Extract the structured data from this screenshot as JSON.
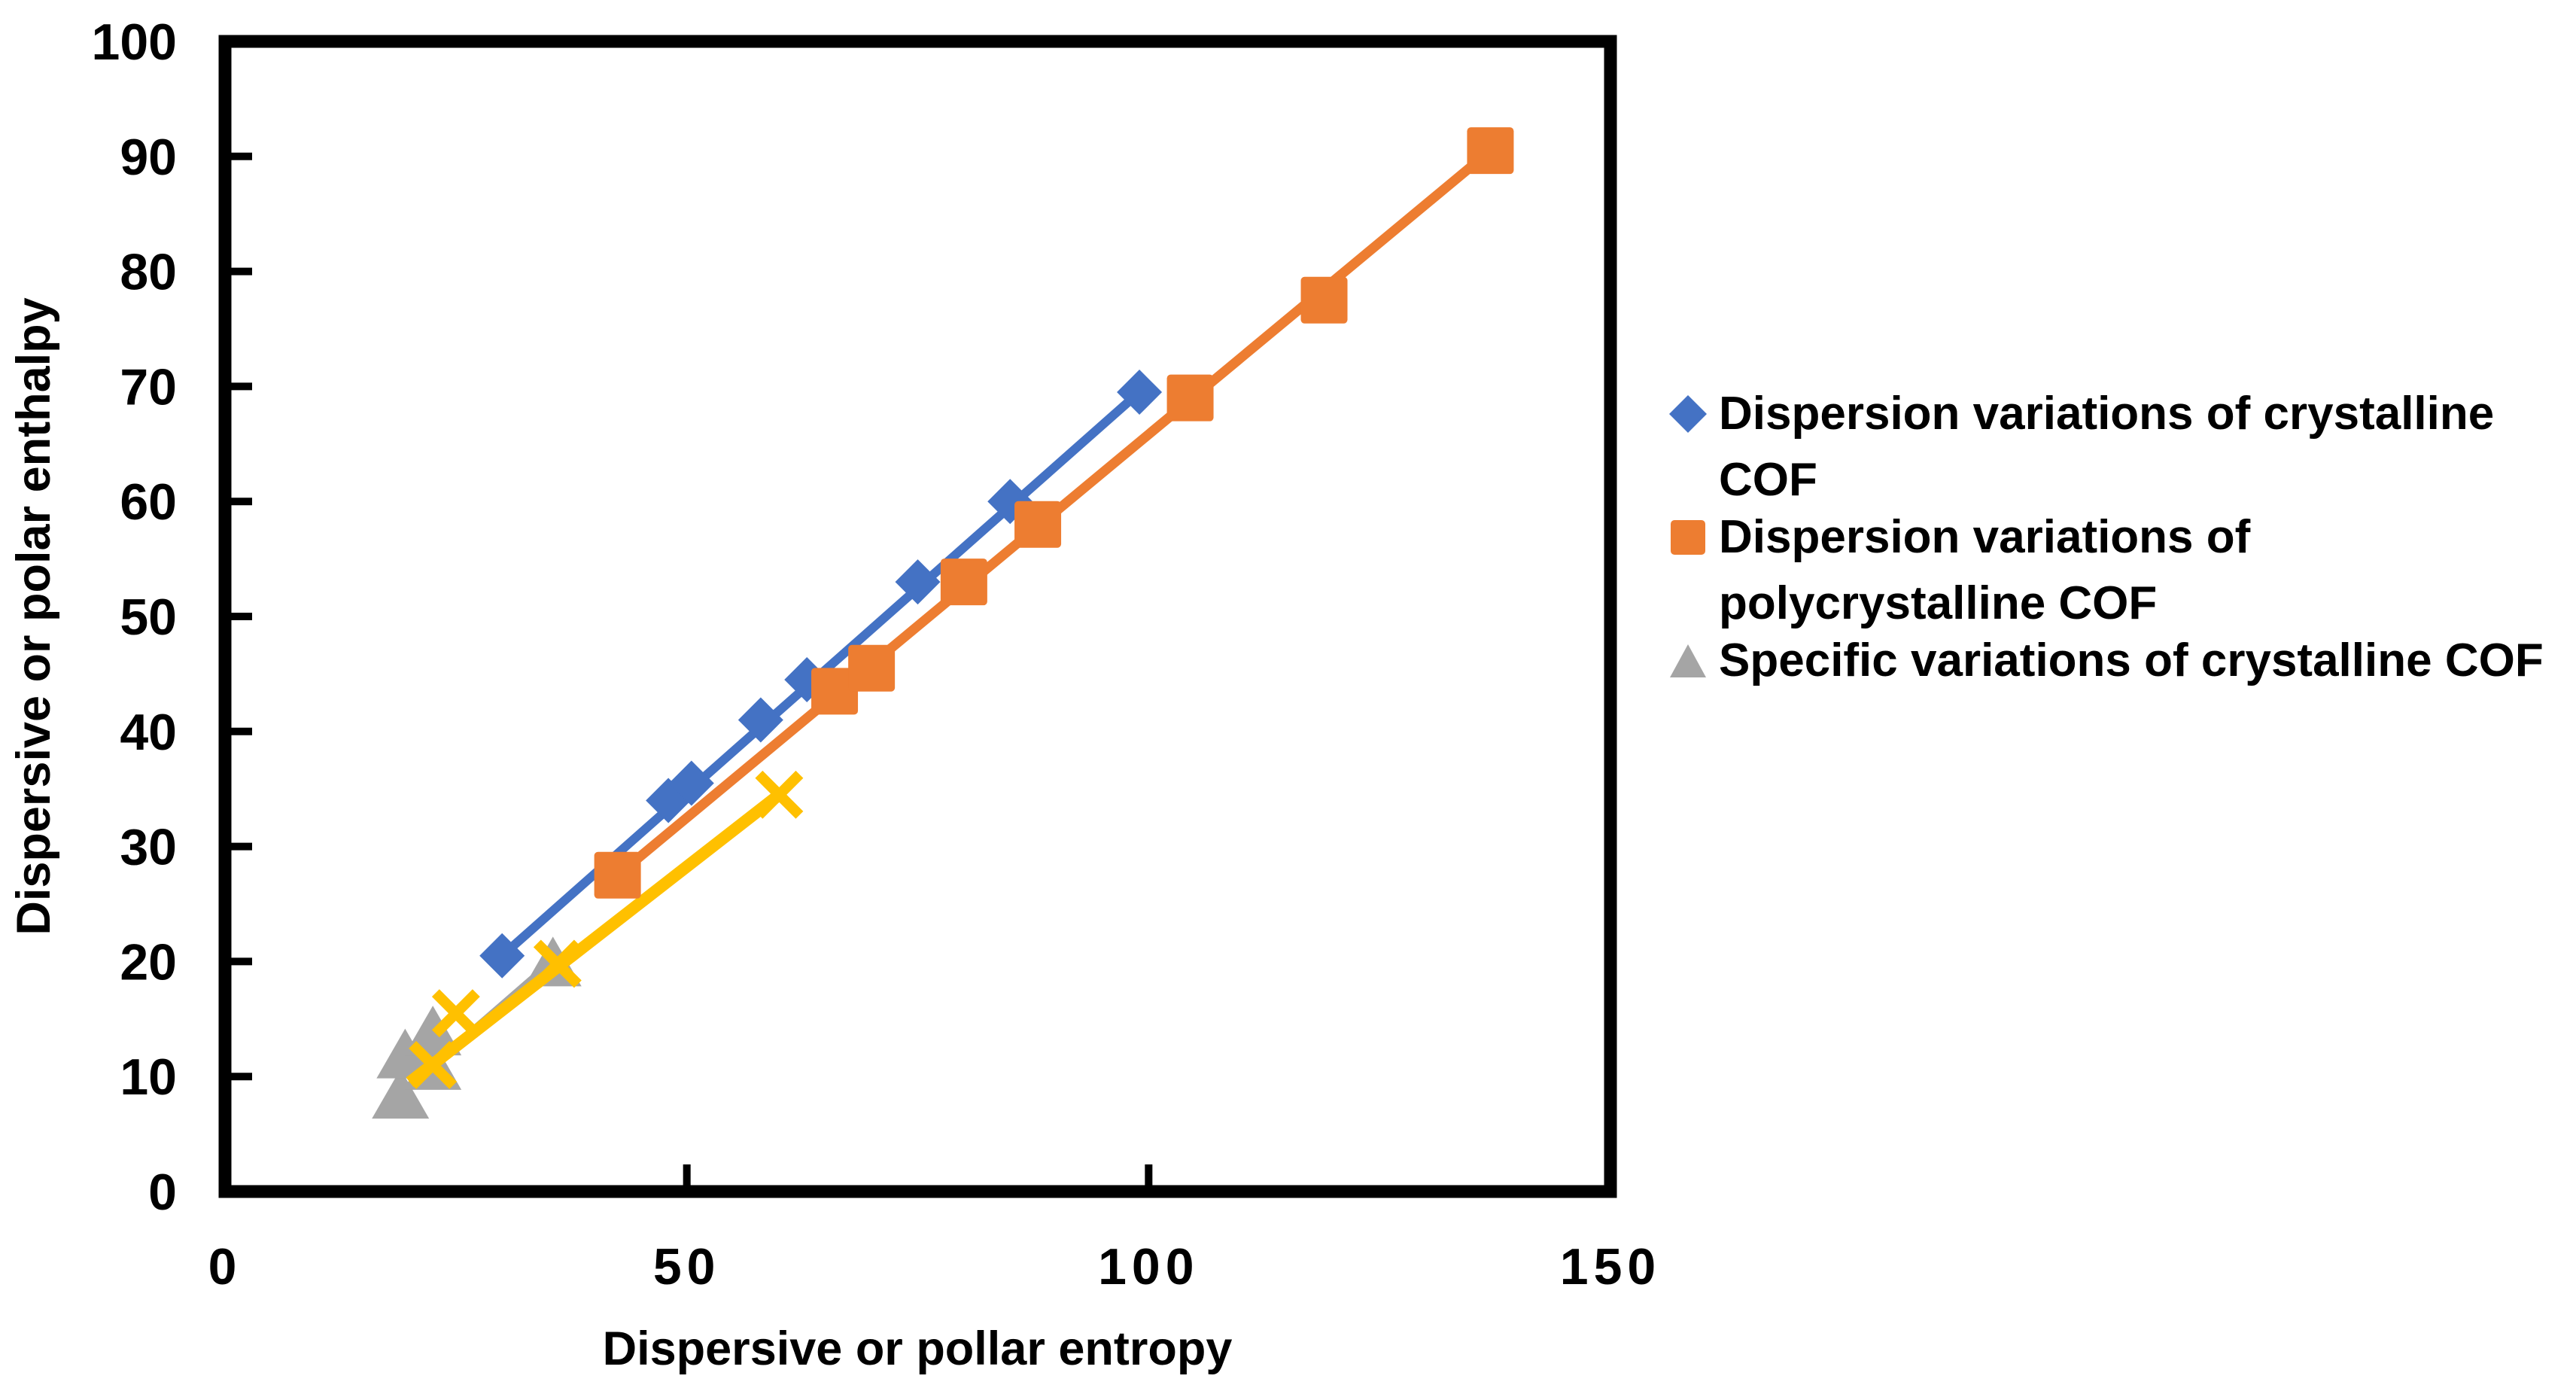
{
  "chart_data": {
    "type": "scatter",
    "title": "",
    "grid": false,
    "x_axis": {
      "label": "Dispersive or pollar entropy",
      "min": 0,
      "max": 150,
      "ticks": [
        0,
        50,
        100,
        150
      ]
    },
    "y_axis": {
      "label": "Dispersive or polar enthalpy",
      "min": 0,
      "max": 100,
      "ticks": [
        0,
        10,
        20,
        30,
        40,
        50,
        60,
        70,
        80,
        90,
        100
      ]
    },
    "series": [
      {
        "name": "Dispersion variations of crystalline COF",
        "marker": "diamond",
        "color": "#4472C4",
        "line_width": 12,
        "in_legend": true,
        "points": [
          [
            30,
            20.5
          ],
          [
            48,
            34
          ],
          [
            50.5,
            35.5
          ],
          [
            58,
            41
          ],
          [
            63,
            44.5
          ],
          [
            75,
            53
          ],
          [
            85,
            60
          ],
          [
            99,
            69.5
          ]
        ],
        "trendline": [
          [
            30,
            20.5
          ],
          [
            99,
            69.5
          ]
        ]
      },
      {
        "name": "Dispersion variations of polycrystalline COF",
        "marker": "square",
        "color": "#ED7D31",
        "line_width": 13,
        "in_legend": true,
        "points": [
          [
            42.5,
            27.5
          ],
          [
            66,
            43.5
          ],
          [
            70,
            45.5
          ],
          [
            80,
            53
          ],
          [
            88,
            58
          ],
          [
            104.5,
            69
          ],
          [
            119,
            77.5
          ],
          [
            137,
            90.5
          ]
        ],
        "trendline": [
          [
            42.5,
            27.5
          ],
          [
            137,
            90.5
          ]
        ]
      },
      {
        "name": "Specific variations of crystalline COF",
        "marker": "triangle",
        "color": "#A5A5A5",
        "line_width": 11,
        "in_legend": true,
        "points": [
          [
            19,
            8.5
          ],
          [
            19.5,
            12
          ],
          [
            22.5,
            11
          ],
          [
            22.5,
            14
          ],
          [
            35.5,
            20
          ]
        ],
        "trendline": [
          [
            19,
            8.5
          ],
          [
            35.5,
            20
          ]
        ]
      },
      {
        "name": "",
        "marker": "x",
        "color": "#FFC000",
        "line_width": 16,
        "in_legend": false,
        "points": [
          [
            22.5,
            11
          ],
          [
            25,
            15.5
          ],
          [
            36,
            19.8
          ],
          [
            60,
            34.5
          ]
        ],
        "trendline": [
          [
            20,
            9.5
          ],
          [
            60,
            34.5
          ]
        ]
      }
    ],
    "legend": {
      "position": "right",
      "items": [
        {
          "label": "Dispersion variations of crystalline COF",
          "lines": [
            "Dispersion variations of crystalline",
            "COF"
          ],
          "marker": "diamond",
          "color": "#4472C4"
        },
        {
          "label": "Dispersion variations of polycrystalline COF",
          "lines": [
            "Dispersion variations of",
            "polycrystalline COF"
          ],
          "marker": "square",
          "color": "#ED7D31"
        },
        {
          "label": "Specific variations of crystalline COF",
          "lines": [
            "Specific variations of crystalline COF"
          ],
          "marker": "triangle",
          "color": "#A5A5A5"
        }
      ]
    },
    "style": {
      "axis_color": "#000000",
      "background": "#FFFFFF"
    }
  }
}
